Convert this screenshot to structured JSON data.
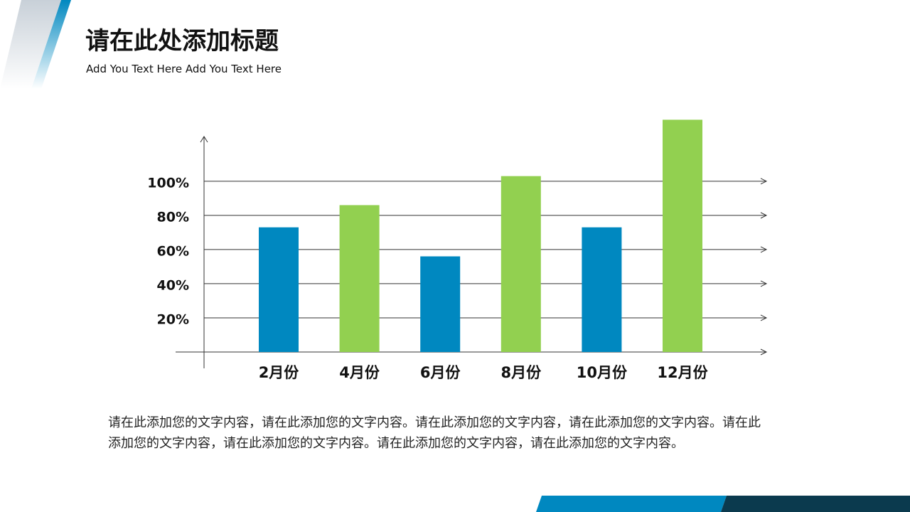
{
  "header": {
    "title": "请在此处添加标题",
    "subtitle": "Add You Text Here Add You Text Here"
  },
  "chart_data": {
    "type": "bar",
    "categories": [
      "2月份",
      "4月份",
      "6月份",
      "8月份",
      "10月份",
      "12月份"
    ],
    "values": [
      73,
      86,
      56,
      103,
      73,
      136
    ],
    "colors": [
      "#0088c0",
      "#92d050",
      "#0088c0",
      "#92d050",
      "#0088c0",
      "#92d050"
    ],
    "ylim": [
      0,
      127
    ],
    "yticks": [
      {
        "value": 20,
        "label": "20%"
      },
      {
        "value": 40,
        "label": "40%"
      },
      {
        "value": 60,
        "label": "60%"
      },
      {
        "value": 80,
        "label": "80%"
      },
      {
        "value": 100,
        "label": "100%"
      }
    ],
    "grid": true
  },
  "body": {
    "text": "请在此添加您的文字内容，请在此添加您的文字内容。请在此添加您的文字内容，请在此添加您的文字内容。请在此添加您的文字内容，请在此添加您的文字内容。请在此添加您的文字内容，请在此添加您的文字内容。"
  }
}
